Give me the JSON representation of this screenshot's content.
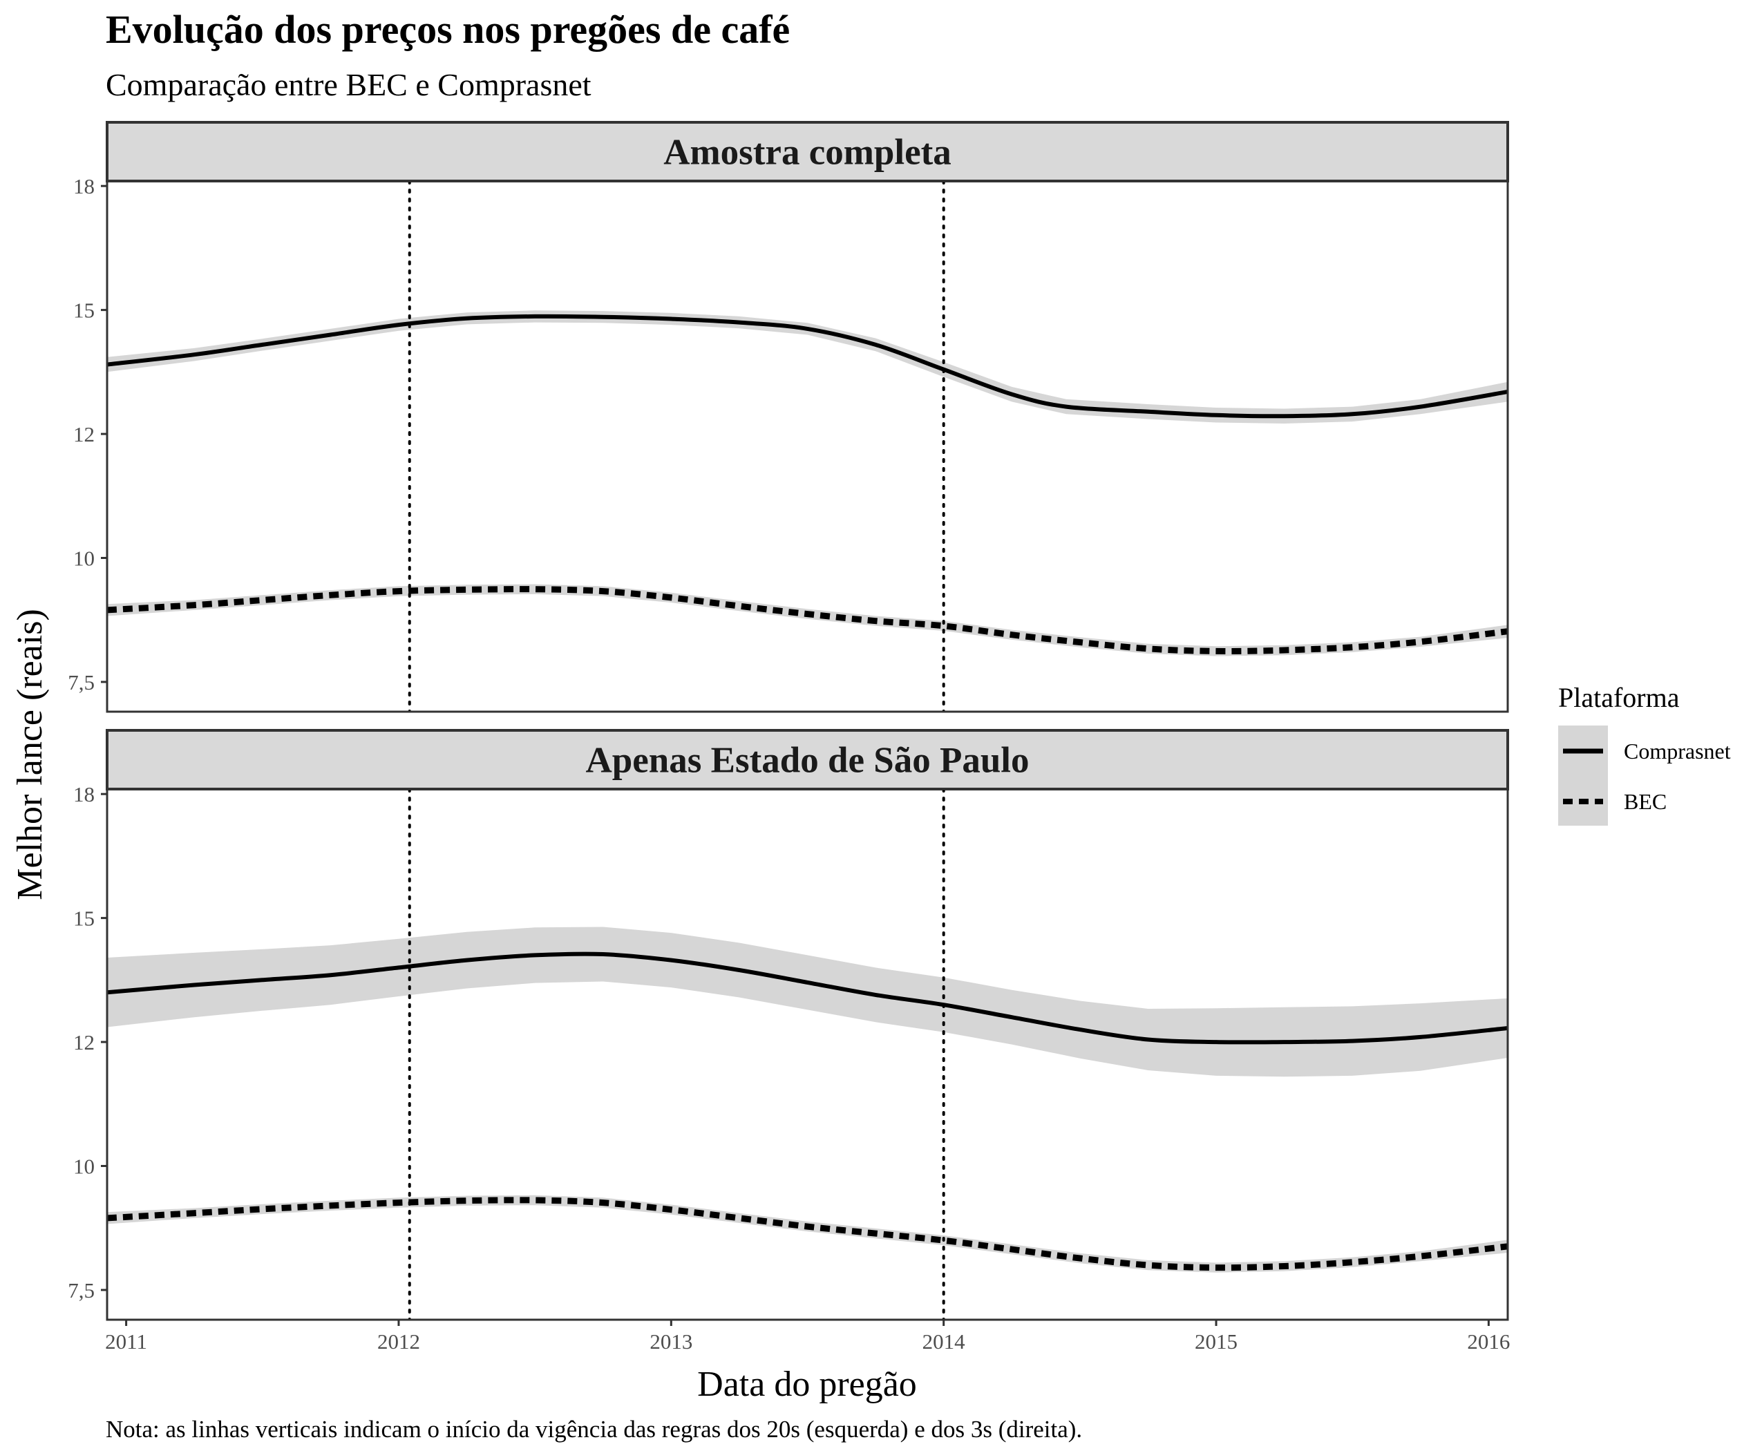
{
  "chart_data": {
    "type": "line",
    "title": "Evolução dos preços nos pregões de café",
    "subtitle": "Comparação entre BEC e Comprasnet",
    "xlabel": "Data do pregão",
    "ylabel": "Melhor lance (reais)",
    "caption": "Nota: as linhas verticais indicam o início da vigência das regras dos 20s (esquerda) e dos 3s (direita).",
    "xlim": [
      2010.93,
      2016.07
    ],
    "ylim": [
      6.9,
      17.6
    ],
    "x_ticks": [
      2011,
      2012,
      2013,
      2014,
      2015,
      2016
    ],
    "x_tick_labels": [
      "2011",
      "2012",
      "2013",
      "2014",
      "2015",
      "2016"
    ],
    "y_ticks": [
      7.5,
      10,
      12.5,
      15,
      17.5
    ],
    "y_tick_labels": [
      "7,5",
      "10",
      "12",
      "15",
      "18"
    ],
    "vlines": [
      2012.04,
      2014.0
    ],
    "grid": false,
    "legend": {
      "title": "Plataforma",
      "position": "right",
      "entries": [
        {
          "label": "Comprasnet",
          "linetype": "solid"
        },
        {
          "label": "BEC",
          "linetype": "dashed"
        }
      ]
    },
    "colors": {
      "line": "#000000",
      "ribbon": "#d6d6d6",
      "strip_fill": "#d9d9d9",
      "strip_border": "#333333",
      "panel_border": "#333333"
    },
    "panels": [
      {
        "label": "Amostra completa",
        "series": [
          {
            "name": "Comprasnet",
            "linetype": "solid",
            "x": [
              2010.93,
              2011.25,
              2011.5,
              2011.75,
              2012.0,
              2012.25,
              2012.5,
              2012.75,
              2013.0,
              2013.25,
              2013.5,
              2013.75,
              2014.0,
              2014.25,
              2014.45,
              2014.75,
              2015.0,
              2015.25,
              2015.5,
              2015.75,
              2016.07
            ],
            "y": [
              13.9,
              14.1,
              14.3,
              14.5,
              14.7,
              14.83,
              14.87,
              14.86,
              14.82,
              14.75,
              14.62,
              14.3,
              13.8,
              13.3,
              13.05,
              12.95,
              12.88,
              12.86,
              12.9,
              13.05,
              13.35
            ],
            "ci_halfwidth": [
              0.15,
              0.13,
              0.12,
              0.12,
              0.12,
              0.12,
              0.12,
              0.12,
              0.12,
              0.12,
              0.12,
              0.13,
              0.15,
              0.15,
              0.15,
              0.15,
              0.15,
              0.15,
              0.15,
              0.15,
              0.2
            ]
          },
          {
            "name": "BEC",
            "linetype": "dashed",
            "x": [
              2010.93,
              2011.25,
              2011.5,
              2011.75,
              2012.0,
              2012.25,
              2012.5,
              2012.75,
              2013.0,
              2013.25,
              2013.5,
              2013.75,
              2014.0,
              2014.25,
              2014.5,
              2014.75,
              2015.0,
              2015.25,
              2015.5,
              2015.75,
              2016.07
            ],
            "y": [
              8.95,
              9.05,
              9.15,
              9.25,
              9.33,
              9.36,
              9.37,
              9.33,
              9.2,
              9.03,
              8.87,
              8.73,
              8.63,
              8.45,
              8.3,
              8.17,
              8.12,
              8.14,
              8.2,
              8.31,
              8.52
            ],
            "ci_halfwidth": [
              0.12,
              0.1,
              0.1,
              0.1,
              0.1,
              0.1,
              0.1,
              0.1,
              0.1,
              0.1,
              0.1,
              0.1,
              0.1,
              0.1,
              0.1,
              0.1,
              0.1,
              0.1,
              0.1,
              0.1,
              0.13
            ]
          }
        ]
      },
      {
        "label": "Apenas Estado de São Paulo",
        "series": [
          {
            "name": "Comprasnet",
            "linetype": "solid",
            "x": [
              2010.93,
              2011.25,
              2011.5,
              2011.75,
              2012.0,
              2012.25,
              2012.5,
              2012.75,
              2013.0,
              2013.25,
              2013.5,
              2013.75,
              2014.0,
              2014.25,
              2014.5,
              2014.75,
              2015.0,
              2015.25,
              2015.5,
              2015.75,
              2016.07
            ],
            "y": [
              13.5,
              13.65,
              13.75,
              13.85,
              14.0,
              14.15,
              14.25,
              14.27,
              14.15,
              13.95,
              13.7,
              13.45,
              13.25,
              13.0,
              12.75,
              12.55,
              12.5,
              12.5,
              12.52,
              12.6,
              12.78
            ],
            "ci_halfwidth": [
              0.7,
              0.65,
              0.62,
              0.6,
              0.58,
              0.57,
              0.56,
              0.55,
              0.55,
              0.55,
              0.55,
              0.55,
              0.55,
              0.55,
              0.58,
              0.62,
              0.68,
              0.7,
              0.7,
              0.68,
              0.6
            ]
          },
          {
            "name": "BEC",
            "linetype": "dashed",
            "x": [
              2010.93,
              2011.25,
              2011.5,
              2011.75,
              2012.0,
              2012.25,
              2012.5,
              2012.75,
              2013.0,
              2013.25,
              2013.5,
              2013.75,
              2014.0,
              2014.25,
              2014.5,
              2014.75,
              2015.0,
              2015.25,
              2015.5,
              2015.75,
              2016.07
            ],
            "y": [
              8.95,
              9.05,
              9.13,
              9.2,
              9.26,
              9.3,
              9.31,
              9.26,
              9.12,
              8.95,
              8.78,
              8.64,
              8.5,
              8.32,
              8.14,
              8.0,
              7.95,
              7.98,
              8.06,
              8.18,
              8.38
            ],
            "ci_halfwidth": [
              0.12,
              0.1,
              0.1,
              0.1,
              0.1,
              0.1,
              0.1,
              0.1,
              0.1,
              0.1,
              0.1,
              0.1,
              0.1,
              0.1,
              0.1,
              0.1,
              0.1,
              0.1,
              0.1,
              0.1,
              0.13
            ]
          }
        ]
      }
    ]
  }
}
